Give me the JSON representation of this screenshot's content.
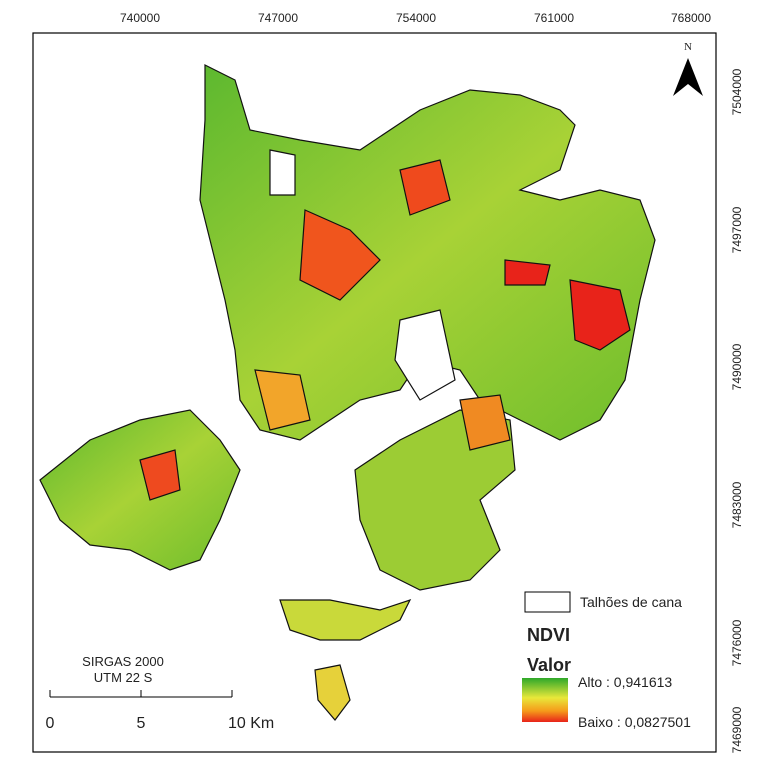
{
  "grid": {
    "x_labels": [
      "740000",
      "747000",
      "754000",
      "761000",
      "768000"
    ],
    "y_labels": [
      "7504000",
      "7497000",
      "7490000",
      "7483000",
      "7476000",
      "7469000"
    ]
  },
  "north": "N",
  "legend": {
    "boundary": "Talhões de cana",
    "title": "NDVI",
    "subtitle": "Valor",
    "high": "Alto : 0,941613",
    "low": "Baixo : 0,0827501"
  },
  "scale": {
    "crs": "SIRGAS 2000",
    "zone": "UTM 22 S",
    "labels": [
      "0",
      "5",
      "10 Km"
    ]
  }
}
